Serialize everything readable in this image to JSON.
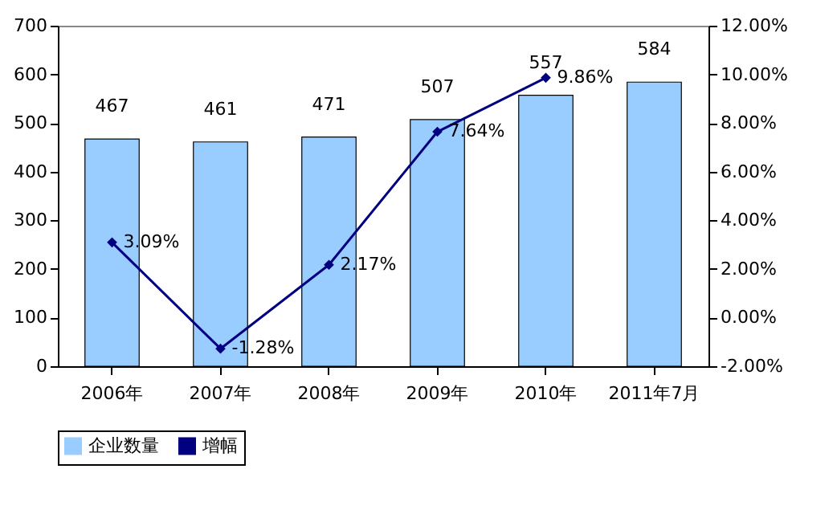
{
  "chart_data": {
    "type": "bar",
    "categories": [
      "2006年",
      "2007年",
      "2008年",
      "2009年",
      "2010年",
      "2011年7月"
    ],
    "series": [
      {
        "name": "企业数量",
        "color": "#99ccff",
        "values": [
          467,
          461,
          471,
          507,
          557,
          584
        ],
        "value_labels": [
          "467",
          "461",
          "471",
          "507",
          "557",
          "584"
        ]
      },
      {
        "name": "增幅",
        "type": "line",
        "axis": "y2",
        "color": "#000080",
        "values": [
          3.09,
          -1.28,
          2.17,
          7.64,
          9.86,
          null
        ],
        "value_labels": [
          "3.09%",
          "-1.28%",
          "2.17%",
          "7.64%",
          "9.86%",
          null
        ]
      }
    ],
    "ylim": [
      0,
      700
    ],
    "yticks": [
      0,
      100,
      200,
      300,
      400,
      500,
      600,
      700
    ],
    "y2lim": [
      -2,
      12
    ],
    "y2ticks": [
      {
        "value": -2,
        "label": "-2.00%"
      },
      {
        "value": 0,
        "label": "0.00%"
      },
      {
        "value": 2,
        "label": "2.00%"
      },
      {
        "value": 4,
        "label": "4.00%"
      },
      {
        "value": 6,
        "label": "6.00%"
      },
      {
        "value": 8,
        "label": "8.00%"
      },
      {
        "value": 10,
        "label": "10.00%"
      },
      {
        "value": 12,
        "label": "12.00%"
      }
    ],
    "legend": "bottom",
    "marker": "diamond"
  }
}
